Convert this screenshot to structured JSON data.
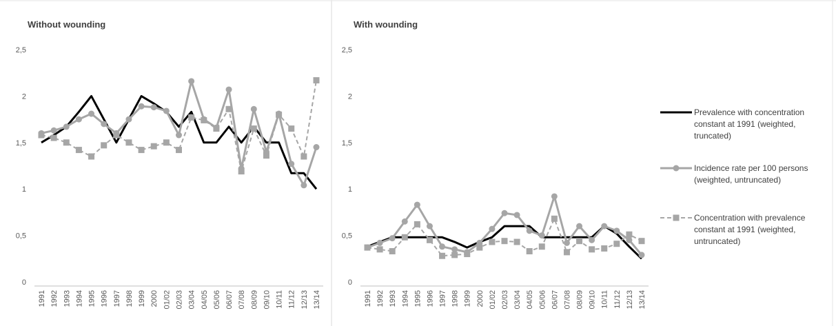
{
  "chart_data": [
    {
      "type": "line",
      "title": "Without wounding",
      "ylim": [
        0,
        2.5
      ],
      "yticks": [
        "0",
        "0,5",
        "1",
        "1,5",
        "2",
        "2,5"
      ],
      "grid": false,
      "categories": [
        "1991",
        "1992",
        "1993",
        "1994",
        "1995",
        "1996",
        "1997",
        "1998",
        "1999",
        "2000",
        "01/02",
        "02/03",
        "03/04",
        "04/05",
        "05/06",
        "06/07",
        "07/08",
        "08/09",
        "09/10",
        "10/11",
        "11/12",
        "12/13",
        "13/14"
      ],
      "series": [
        {
          "name": "Prevalence with concentration constant at 1991 (weighted, truncated)",
          "color": "#000000",
          "style": "solid",
          "marker": "none",
          "values": [
            1.5,
            1.58,
            1.67,
            1.83,
            2.0,
            1.75,
            1.5,
            1.75,
            2.0,
            1.92,
            1.83,
            1.67,
            1.83,
            1.5,
            1.5,
            1.67,
            1.5,
            1.67,
            1.5,
            1.5,
            1.17,
            1.17,
            1.0
          ]
        },
        {
          "name": "Incidence rate per 100 persons (weighted, untruncated)",
          "color": "#a6a6a6",
          "style": "solid",
          "marker": "circle",
          "values": [
            1.6,
            1.63,
            1.67,
            1.75,
            1.81,
            1.7,
            1.6,
            1.75,
            1.89,
            1.88,
            1.84,
            1.58,
            2.16,
            1.75,
            1.66,
            2.07,
            1.22,
            1.86,
            1.4,
            1.81,
            1.27,
            1.04,
            1.45
          ]
        },
        {
          "name": "Concentration with prevalence constant at 1991 (weighted, untruncated)",
          "color": "#a6a6a6",
          "style": "dashed",
          "marker": "square",
          "values": [
            1.58,
            1.55,
            1.5,
            1.42,
            1.35,
            1.47,
            1.58,
            1.5,
            1.42,
            1.46,
            1.5,
            1.42,
            1.77,
            1.74,
            1.65,
            1.86,
            1.19,
            1.65,
            1.36,
            1.8,
            1.65,
            1.35,
            2.17
          ]
        }
      ]
    },
    {
      "type": "line",
      "title": "With wounding",
      "ylim": [
        0,
        2.5
      ],
      "yticks": [
        "0",
        "0,5",
        "1",
        "1,5",
        "2",
        "2,5"
      ],
      "grid": false,
      "legend": "right",
      "categories": [
        "1991",
        "1992",
        "1993",
        "1994",
        "1995",
        "1996",
        "1997",
        "1998",
        "1999",
        "2000",
        "01/02",
        "02/03",
        "03/04",
        "04/05",
        "05/06",
        "06/07",
        "07/08",
        "08/09",
        "09/10",
        "10/11",
        "11/12",
        "12/13",
        "13/14"
      ],
      "series": [
        {
          "name": "Prevalence with concentration constant at 1991 (weighted, truncated)",
          "color": "#000000",
          "style": "solid",
          "marker": "none",
          "values": [
            0.38,
            0.43,
            0.48,
            0.48,
            0.48,
            0.48,
            0.48,
            0.43,
            0.37,
            0.43,
            0.48,
            0.6,
            0.6,
            0.6,
            0.48,
            0.48,
            0.48,
            0.48,
            0.48,
            0.6,
            0.52,
            0.38,
            0.25
          ]
        },
        {
          "name": "Incidence rate per 100 persons (weighted, untruncated)",
          "color": "#a6a6a6",
          "style": "solid",
          "marker": "circle",
          "values": [
            0.37,
            0.42,
            0.47,
            0.65,
            0.83,
            0.6,
            0.38,
            0.35,
            0.32,
            0.42,
            0.57,
            0.74,
            0.72,
            0.55,
            0.5,
            0.92,
            0.42,
            0.6,
            0.45,
            0.6,
            0.55,
            0.45,
            0.29
          ]
        },
        {
          "name": "Concentration with prevalence constant at 1991 (weighted, untruncated)",
          "color": "#a6a6a6",
          "style": "dashed",
          "marker": "square",
          "values": [
            0.37,
            0.35,
            0.33,
            0.48,
            0.62,
            0.45,
            0.28,
            0.29,
            0.3,
            0.37,
            0.43,
            0.44,
            0.43,
            0.33,
            0.38,
            0.68,
            0.32,
            0.44,
            0.35,
            0.36,
            0.41,
            0.51,
            0.44
          ]
        }
      ]
    }
  ],
  "legend": {
    "items": [
      {
        "label_lines": [
          "Prevalence with concentration",
          "constant at 1991 (weighted,",
          "truncated)"
        ],
        "color": "#000000",
        "style": "solid",
        "marker": "none"
      },
      {
        "label_lines": [
          "Incidence rate per 100 persons",
          "(weighted, untruncated)"
        ],
        "color": "#a6a6a6",
        "style": "solid",
        "marker": "circle"
      },
      {
        "label_lines": [
          "Concentration with prevalence",
          "constant at 1991 (weighted,",
          "untruncated)"
        ],
        "color": "#a6a6a6",
        "style": "dashed",
        "marker": "square"
      }
    ]
  }
}
